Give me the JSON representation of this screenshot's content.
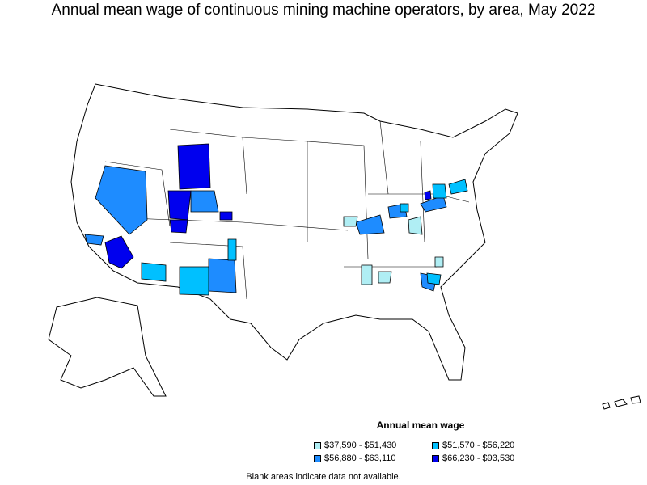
{
  "title": "Annual mean wage of continuous mining machine operators, by area, May 2022",
  "legend": {
    "title": "Annual mean wage",
    "items": [
      {
        "label": "$37,590 - $51,430",
        "color": "#b0eef4"
      },
      {
        "label": "$51,570 - $56,220",
        "color": "#00c0ff"
      },
      {
        "label": "$56,880 - $63,110",
        "color": "#1e8cff"
      },
      {
        "label": "$66,230 - $93,530",
        "color": "#0000ee"
      }
    ]
  },
  "footnote": "Blank areas indicate data not available."
}
